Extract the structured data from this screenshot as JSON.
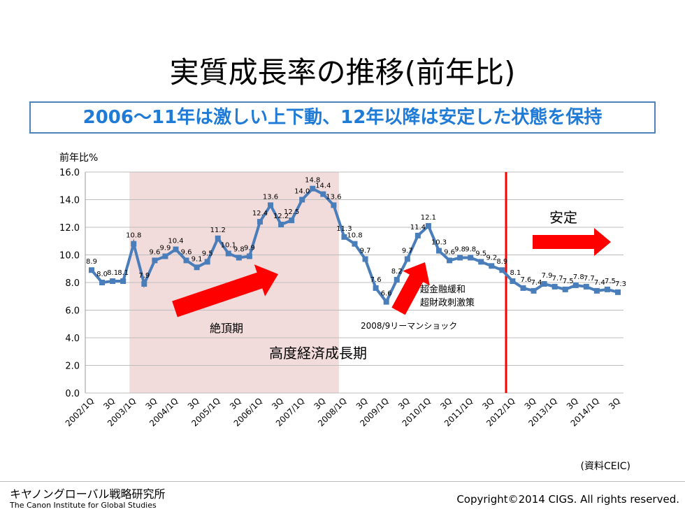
{
  "title": "実質成長率の推移(前年比)",
  "subtitle": "2006〜11年は激しい上下動、12年以降は安定した状態を保持",
  "chart_data": {
    "type": "line",
    "ylabel": "前年比%",
    "ylim": [
      0,
      16
    ],
    "yticks": [
      "0.0",
      "2.0",
      "4.0",
      "6.0",
      "8.0",
      "10.0",
      "12.0",
      "14.0",
      "16.0"
    ],
    "xtick_labels": [
      "2002/1Q",
      "3Q",
      "2003/1Q",
      "3Q",
      "2004/1Q",
      "3Q",
      "2005/1Q",
      "3Q",
      "2006/1Q",
      "3Q",
      "2007/1Q",
      "3Q",
      "2008/1Q",
      "3Q",
      "2009/1Q",
      "3Q",
      "2010/1Q",
      "3Q",
      "2011/1Q",
      "3Q",
      "2012/1Q",
      "3Q",
      "2013/1Q",
      "3Q",
      "2014/1Q",
      "3Q"
    ],
    "values": [
      8.9,
      8.0,
      8.1,
      8.1,
      10.8,
      7.9,
      9.6,
      9.9,
      10.4,
      9.6,
      9.1,
      9.5,
      11.2,
      10.1,
      9.8,
      9.9,
      12.4,
      13.6,
      12.2,
      12.5,
      14.0,
      14.8,
      14.4,
      13.6,
      11.3,
      10.8,
      9.7,
      7.6,
      6.6,
      8.2,
      9.7,
      11.4,
      12.1,
      10.3,
      9.6,
      9.8,
      9.8,
      9.5,
      9.2,
      8.9,
      8.1,
      7.6,
      7.4,
      7.9,
      7.7,
      7.5,
      7.8,
      7.7,
      7.4,
      7.5,
      7.3
    ],
    "grid": true,
    "annotations": {
      "peak": "絶頂期",
      "high_growth": "高度経済成長期",
      "lehman": "2008/9リーマンショック",
      "stimulus1": "超金融緩和",
      "stimulus2": "超財政刺激策",
      "stable": "安定"
    },
    "colors": {
      "line": "#4a7ebb",
      "shade": "#f2dcdb",
      "arrow": "#ff0000"
    }
  },
  "source": "(資料CEIC)",
  "org_name": "キヤノングローバル戦略研究所",
  "org_name_en": "The Canon Institute for Global Studies",
  "copyright": "Copyright©2014 CIGS. All rights reserved."
}
